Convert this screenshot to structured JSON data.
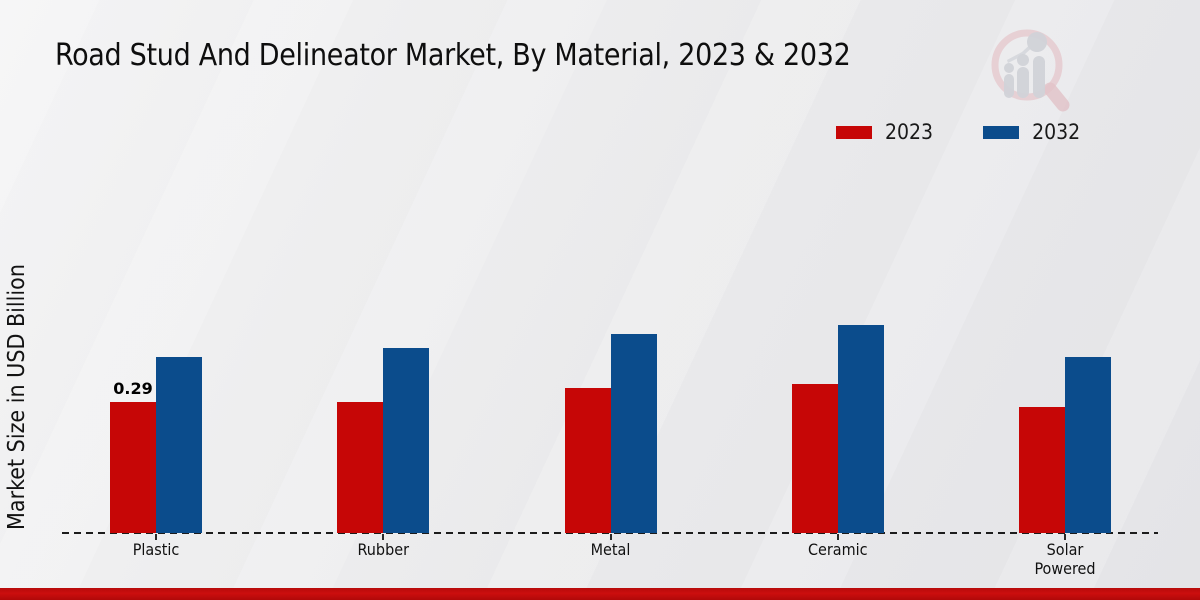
{
  "title": "Road Stud And Delineator Market, By Material, 2023 & 2032",
  "y_axis_label": "Market Size in USD Billion",
  "icons": {
    "logo": "magnifier-bar-chart-watermark"
  },
  "footer_bar_color": "#c40d0d",
  "chart_data": {
    "type": "bar",
    "title": "Road Stud And Delineator Market, By Material, 2023 & 2032",
    "categories": [
      "Plastic",
      "Rubber",
      "Metal",
      "Ceramic",
      "Solar Powered"
    ],
    "series": [
      {
        "name": "2023",
        "color": "#c60606",
        "values": [
          0.29,
          0.29,
          0.32,
          0.33,
          0.28
        ]
      },
      {
        "name": "2032",
        "color": "#0b4c8c",
        "values": [
          0.39,
          0.41,
          0.44,
          0.46,
          0.39
        ]
      }
    ],
    "xlabel": "",
    "ylabel": "Market Size in USD Billion",
    "ylim": [
      0,
      0.5
    ],
    "grid": false,
    "axis_style": "dashed-baseline-only",
    "legend_position": "top-right",
    "data_labels": [
      {
        "series": "2023",
        "category": "Plastic",
        "text": "0.29"
      }
    ]
  }
}
